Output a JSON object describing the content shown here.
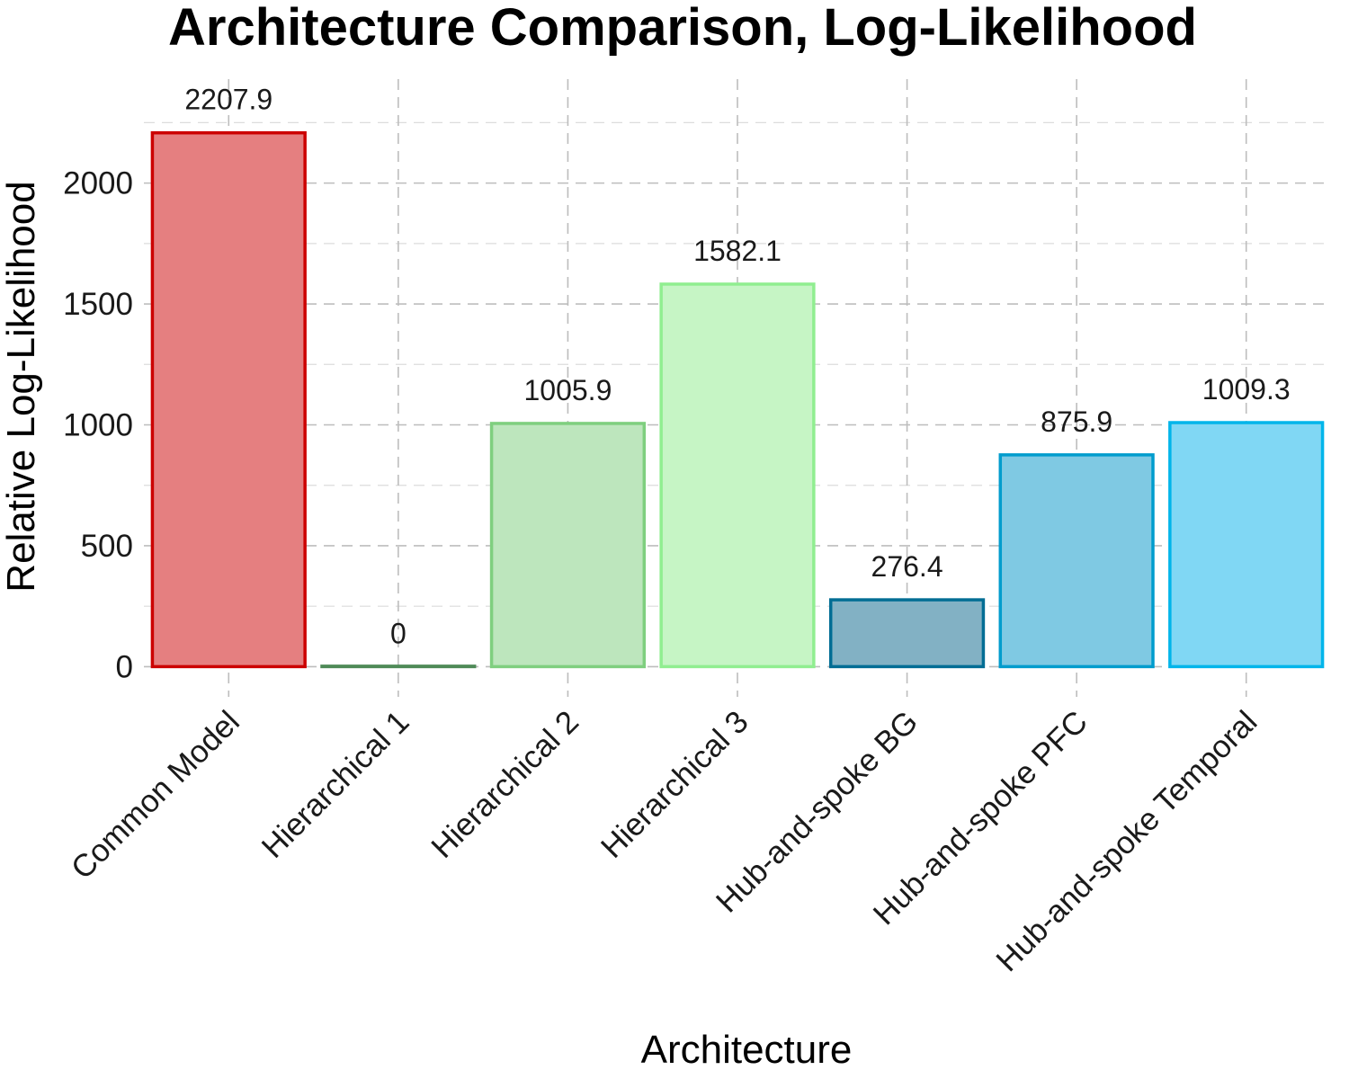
{
  "chart_data": {
    "type": "bar",
    "title": "Architecture Comparison, Log-Likelihood",
    "xlabel": "Architecture",
    "ylabel": "Relative Log-Likelihood",
    "categories": [
      "Common Model",
      "Hierarchical 1",
      "Hierarchical 2",
      "Hierarchical 3",
      "Hub-and-spoke BG",
      "Hub-and-spoke PFC",
      "Hub-and-spoke Temporal"
    ],
    "values": [
      2207.9,
      0,
      1005.9,
      1582.1,
      276.4,
      875.9,
      1009.3
    ],
    "value_labels": [
      "2207.9",
      "0",
      "1005.9",
      "1582.1",
      "276.4",
      "875.9",
      "1009.3"
    ],
    "fill_colors": [
      "#e57f80",
      "#5a9a63",
      "#bde6bd",
      "#c6f5c5",
      "#82b1c4",
      "#7fc9e3",
      "#80d7f4"
    ],
    "border_colors": [
      "#cc0000",
      "#4e8a57",
      "#7fcf7f",
      "#90ee90",
      "#006d94",
      "#009ccd",
      "#00b5ea"
    ],
    "y_ticks": [
      0,
      500,
      1000,
      1500,
      2000
    ],
    "y_tick_labels": [
      "0",
      "500",
      "1000",
      "1500",
      "2000"
    ],
    "ylim": [
      -125,
      2430
    ],
    "grid": true,
    "legend": "none"
  }
}
